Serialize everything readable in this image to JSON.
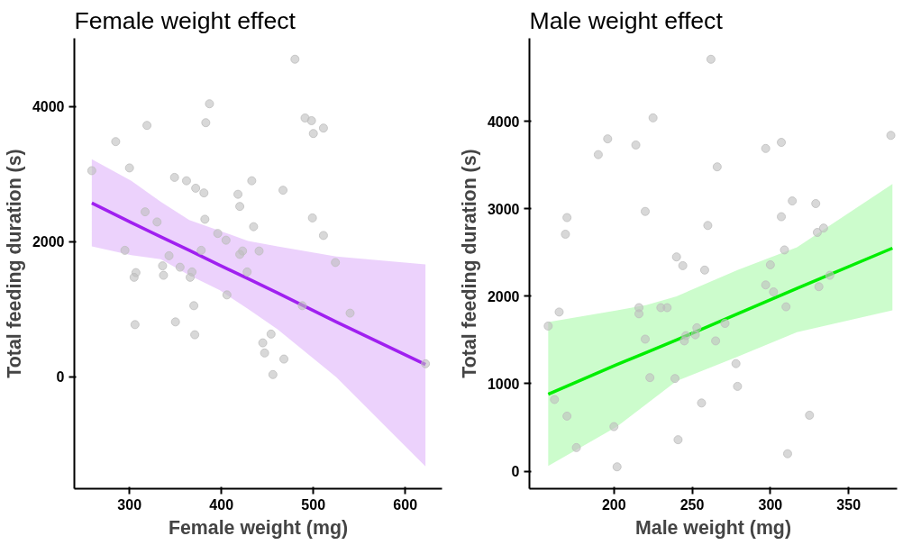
{
  "chart_data": [
    {
      "type": "scatter",
      "title": "Female weight effect",
      "xlabel": "Female weight (mg)",
      "ylabel": "Total feeding duration (s)",
      "xlim": [
        240,
        640
      ],
      "ylim": [
        -1660,
        5010
      ],
      "xticks": [
        300,
        400,
        500,
        600
      ],
      "yticks": [
        0,
        2000,
        4000
      ],
      "grid": false,
      "series": [
        {
          "marker": "circle",
          "color": "#bebebe",
          "x": [
            480,
            387,
            383,
            319,
            285,
            491,
            498,
            511,
            500,
            259,
            300,
            349,
            362,
            372,
            381,
            433,
            467,
            418,
            420,
            317,
            330,
            382,
            499,
            435,
            396,
            405,
            511,
            295,
            378,
            423,
            420,
            441,
            343,
            524,
            336,
            355,
            307,
            305,
            337,
            368,
            366,
            428,
            406,
            370,
            306,
            350,
            371,
            454,
            445,
            447,
            468,
            456,
            488,
            540,
            622
          ],
          "values": [
            4700,
            4040,
            3760,
            3720,
            3480,
            3830,
            3790,
            3680,
            3600,
            3050,
            3090,
            2950,
            2900,
            2790,
            2720,
            2900,
            2760,
            2700,
            2520,
            2440,
            2290,
            2330,
            2350,
            2220,
            2120,
            2020,
            2090,
            1870,
            1870,
            1860,
            1810,
            1860,
            1790,
            1690,
            1640,
            1620,
            1540,
            1470,
            1500,
            1550,
            1470,
            1550,
            1210,
            1050,
            770,
            810,
            620,
            630,
            500,
            350,
            260,
            30,
            1050,
            940,
            190
          ]
        },
        {
          "type": "line",
          "color": "#a020f0",
          "x": [
            259,
            302,
            334,
            365,
            398,
            429,
            461,
            525,
            622
          ],
          "values": [
            2570,
            2280,
            2070,
            1870,
            1650,
            1450,
            1240,
            810,
            180
          ],
          "upper": [
            3220,
            2900,
            2590,
            2320,
            2160,
            2010,
            1930,
            1780,
            1660
          ],
          "lower": [
            1930,
            1800,
            1740,
            1500,
            1280,
            1000,
            700,
            -10,
            -1330
          ]
        }
      ]
    },
    {
      "type": "scatter",
      "title": "Male weight effect",
      "xlabel": "Male weight (mg)",
      "ylabel": "Total feeding duration (s)",
      "xlim": [
        146,
        381
      ],
      "ylim": [
        -200,
        4950
      ],
      "xticks": [
        200,
        250,
        300,
        350
      ],
      "yticks": [
        0,
        1000,
        2000,
        3000,
        4000
      ],
      "grid": false,
      "series": [
        {
          "marker": "circle",
          "color": "#bebebe",
          "x": [
            262,
            225,
            196,
            214,
            190,
            297,
            307,
            377,
            266,
            170,
            169,
            220,
            260,
            314,
            329,
            307,
            330,
            334,
            309,
            240,
            244,
            258,
            300,
            297,
            338,
            331,
            302,
            310,
            158,
            165,
            216,
            216,
            230,
            234,
            253,
            246,
            252,
            245,
            271,
            265,
            220,
            278,
            279,
            223,
            239,
            256,
            162,
            170,
            200,
            241,
            325,
            176,
            311,
            202
          ],
          "values": [
            4710,
            4040,
            3800,
            3730,
            3620,
            3690,
            3760,
            3840,
            3480,
            2900,
            2710,
            2970,
            2810,
            3090,
            3060,
            2910,
            2730,
            2780,
            2530,
            2450,
            2350,
            2300,
            2360,
            2130,
            2240,
            2110,
            2050,
            1880,
            1660,
            1820,
            1870,
            1800,
            1870,
            1870,
            1640,
            1550,
            1560,
            1490,
            1690,
            1490,
            1510,
            1230,
            970,
            1070,
            1060,
            780,
            820,
            630,
            510,
            360,
            640,
            270,
            200,
            50
          ]
        },
        {
          "type": "line",
          "color": "#00ee00",
          "x": [
            158,
            202,
            221,
            240,
            279,
            317,
            378
          ],
          "values": [
            880,
            1220,
            1360,
            1500,
            1800,
            2090,
            2550
          ],
          "upper": [
            1705,
            1840,
            1900,
            2000,
            2300,
            2560,
            3285
          ],
          "lower": [
            60,
            510,
            770,
            1030,
            1310,
            1590,
            1840
          ]
        }
      ]
    }
  ]
}
